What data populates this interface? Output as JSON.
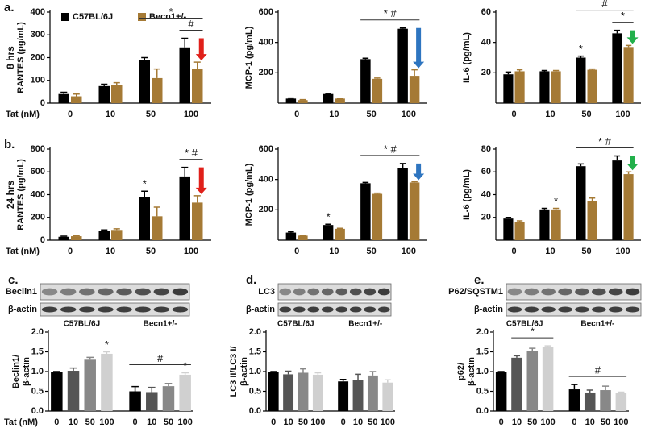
{
  "chart_data": [
    {
      "type": "bar",
      "panel": "a.",
      "row_label": "8 hrs",
      "xlabel": "Tat (nM)",
      "ylabel": "RANTES (pg/mL)",
      "categories": [
        "0",
        "10",
        "50",
        "100"
      ],
      "ylim": [
        0,
        400
      ],
      "yticks": [
        0,
        100,
        200,
        300,
        400
      ],
      "legend": "top-left",
      "series": [
        {
          "name": "C57BL/6J",
          "color": "#000000",
          "values": [
            40,
            75,
            190,
            245
          ],
          "errors": [
            8,
            8,
            10,
            40
          ]
        },
        {
          "name": "Becn1+/-",
          "color": "#a57a35",
          "values": [
            30,
            80,
            110,
            150
          ],
          "errors": [
            10,
            10,
            40,
            30
          ]
        }
      ],
      "annotations": [
        {
          "text": "#",
          "span": [
            3,
            3
          ]
        },
        {
          "text": "*",
          "span": [
            2,
            3
          ]
        }
      ],
      "arrow_color": "#e0201a"
    },
    {
      "type": "bar",
      "ylabel": "MCP-1 (pg/mL)",
      "categories": [
        "0",
        "10",
        "50",
        "100"
      ],
      "ylim": [
        0,
        600
      ],
      "yticks": [
        200,
        400,
        600
      ],
      "series": [
        {
          "color": "#000000",
          "values": [
            30,
            60,
            290,
            490
          ],
          "errors": [
            4,
            3,
            6,
            5
          ]
        },
        {
          "color": "#a57a35",
          "values": [
            20,
            30,
            160,
            180
          ],
          "errors": [
            3,
            3,
            5,
            40
          ]
        }
      ],
      "annotations": [
        {
          "text": "* #",
          "span": [
            2,
            3
          ]
        }
      ],
      "arrow_color": "#2e75c0"
    },
    {
      "type": "bar",
      "ylabel": "IL-6 (pg/mL)",
      "categories": [
        "0",
        "10",
        "50",
        "100"
      ],
      "ylim": [
        0,
        60
      ],
      "yticks": [
        20,
        40,
        60
      ],
      "series": [
        {
          "color": "#000000",
          "values": [
            19,
            21,
            30,
            46
          ],
          "errors": [
            1.5,
            0.5,
            1,
            2
          ]
        },
        {
          "color": "#a57a35",
          "values": [
            21,
            21,
            22,
            37
          ],
          "errors": [
            1,
            0.5,
            0.5,
            1
          ]
        }
      ],
      "annotations": [
        {
          "text": "*",
          "category": 2,
          "series": 0
        },
        {
          "text": "*",
          "span": [
            3,
            3
          ]
        },
        {
          "text": "#",
          "span": [
            2,
            3
          ]
        }
      ],
      "arrow_color": "#22b04b"
    },
    {
      "type": "bar",
      "panel": "b.",
      "row_label": "24 hrs",
      "xlabel": "Tat (nM)",
      "ylabel": "RANTES (pg/mL)",
      "categories": [
        "0",
        "10",
        "50",
        "100"
      ],
      "ylim": [
        0,
        800
      ],
      "yticks": [
        0,
        200,
        400,
        600,
        800
      ],
      "series": [
        {
          "color": "#000000",
          "values": [
            30,
            80,
            380,
            560
          ],
          "errors": [
            5,
            10,
            50,
            80
          ]
        },
        {
          "color": "#a57a35",
          "values": [
            35,
            90,
            210,
            330
          ],
          "errors": [
            5,
            10,
            80,
            60
          ]
        }
      ],
      "annotations": [
        {
          "text": "*",
          "category": 2,
          "series": 0
        },
        {
          "text": "* #",
          "span": [
            3,
            3
          ]
        }
      ],
      "arrow_color": "#e0201a"
    },
    {
      "type": "bar",
      "ylabel": "MCP-1 (pg/mL)",
      "categories": [
        "0",
        "10",
        "50",
        "100"
      ],
      "ylim": [
        0,
        600
      ],
      "yticks": [
        200,
        400,
        600
      ],
      "series": [
        {
          "color": "#000000",
          "values": [
            50,
            100,
            375,
            475
          ],
          "errors": [
            5,
            5,
            5,
            30
          ]
        },
        {
          "color": "#a57a35",
          "values": [
            30,
            75,
            305,
            380
          ],
          "errors": [
            3,
            3,
            5,
            5
          ]
        }
      ],
      "annotations": [
        {
          "text": "*",
          "category": 1,
          "series": 0
        },
        {
          "text": "* #",
          "span": [
            2,
            3
          ]
        }
      ],
      "arrow_color": "#2e75c0"
    },
    {
      "type": "bar",
      "ylabel": "IL-6 (pg/mL)",
      "categories": [
        "0",
        "10",
        "50",
        "100"
      ],
      "ylim": [
        0,
        80
      ],
      "yticks": [
        20,
        40,
        60,
        80
      ],
      "series": [
        {
          "color": "#000000",
          "values": [
            19,
            27,
            65,
            70
          ],
          "errors": [
            1,
            1,
            2,
            4
          ]
        },
        {
          "color": "#a57a35",
          "values": [
            16,
            27,
            34,
            58
          ],
          "errors": [
            1,
            1,
            3,
            2
          ]
        }
      ],
      "annotations": [
        {
          "text": "*",
          "category": 1,
          "series": 1
        },
        {
          "text": "* #",
          "span": [
            2,
            3
          ]
        }
      ],
      "arrow_color": "#22b04b"
    },
    {
      "type": "bar",
      "panel": "c.",
      "xlabel": "Tat (nM)",
      "ylabel": [
        "Beclin1/",
        "β-actin"
      ],
      "blot": {
        "labels": [
          "Beclin1",
          "β-actin"
        ],
        "groups": [
          "C57BL/6J",
          "Becn1+/-"
        ]
      },
      "categories": [
        "0",
        "10",
        "50",
        "100",
        "0",
        "10",
        "50",
        "100"
      ],
      "ylim": [
        0,
        2
      ],
      "yticks": [
        {
          "value": 0,
          "label": "0.0"
        },
        {
          "value": 0.5,
          "label": "0.5"
        },
        {
          "value": 1,
          "label": "1.0"
        },
        {
          "value": 1.5,
          "label": "1.5"
        },
        {
          "value": 2,
          "label": "2.0"
        }
      ],
      "series": [
        {
          "colors": [
            "#000000",
            "#555555",
            "#888888",
            "#d0d0d0",
            "#000000",
            "#555555",
            "#888888",
            "#d0d0d0"
          ],
          "values": [
            1.0,
            1.02,
            1.3,
            1.45,
            0.5,
            0.48,
            0.63,
            0.92
          ],
          "errors": [
            0,
            0.07,
            0.06,
            0.05,
            0.12,
            0.12,
            0.07,
            0.05
          ]
        }
      ],
      "annotations": [
        {
          "text": "*",
          "category": 3,
          "series": 0
        },
        {
          "text": "*",
          "category": 7,
          "series": 0
        },
        {
          "text": "#",
          "span": [
            4,
            7
          ]
        }
      ]
    },
    {
      "type": "bar",
      "panel": "d.",
      "ylabel": [
        "LC3 II/LC3 I/",
        "β-actin"
      ],
      "blot": {
        "labels": [
          "LC3",
          "β-actin"
        ],
        "groups": [
          "C57BL/6J",
          "Becn1+/-"
        ]
      },
      "categories": [
        "0",
        "10",
        "50",
        "100",
        "0",
        "10",
        "50",
        "100"
      ],
      "ylim": [
        0,
        2
      ],
      "yticks": [
        {
          "value": 0,
          "label": "0.0"
        },
        {
          "value": 0.5,
          "label": "0.5"
        },
        {
          "value": 1,
          "label": "1.0"
        },
        {
          "value": 1.5,
          "label": "1.5"
        },
        {
          "value": 2,
          "label": "2.0"
        }
      ],
      "series": [
        {
          "colors": [
            "#000000",
            "#555555",
            "#888888",
            "#d0d0d0",
            "#000000",
            "#555555",
            "#888888",
            "#d0d0d0"
          ],
          "values": [
            1.0,
            0.93,
            0.97,
            0.92,
            0.75,
            0.78,
            0.9,
            0.72
          ],
          "errors": [
            0,
            0.08,
            0.1,
            0.05,
            0.05,
            0.15,
            0.1,
            0.07
          ]
        }
      ],
      "annotations": []
    },
    {
      "type": "bar",
      "panel": "e.",
      "ylabel": [
        "p62/",
        "β-actin"
      ],
      "blot": {
        "labels": [
          "P62/SQSTM1",
          "β-actin"
        ],
        "groups": [
          "C57BL/6J",
          "Becn1+/-"
        ]
      },
      "categories": [
        "0",
        "10",
        "50",
        "100",
        "0",
        "10",
        "50",
        "100"
      ],
      "ylim": [
        0,
        2
      ],
      "yticks": [
        {
          "value": 0,
          "label": "0.0"
        },
        {
          "value": 0.5,
          "label": "0.5"
        },
        {
          "value": 1,
          "label": "1.0"
        },
        {
          "value": 1.5,
          "label": "1.5"
        },
        {
          "value": 2,
          "label": "2.0"
        }
      ],
      "series": [
        {
          "colors": [
            "#000000",
            "#555555",
            "#888888",
            "#d0d0d0",
            "#000000",
            "#555555",
            "#888888",
            "#d0d0d0"
          ],
          "values": [
            1.0,
            1.35,
            1.53,
            1.62,
            0.55,
            0.47,
            0.53,
            0.46
          ],
          "errors": [
            0,
            0.05,
            0.06,
            0.03,
            0.12,
            0.06,
            0.1,
            0.02
          ]
        }
      ],
      "annotations": [
        {
          "text": "*",
          "span": [
            1,
            3
          ]
        },
        {
          "text": "#",
          "span": [
            4,
            7
          ]
        }
      ]
    }
  ]
}
